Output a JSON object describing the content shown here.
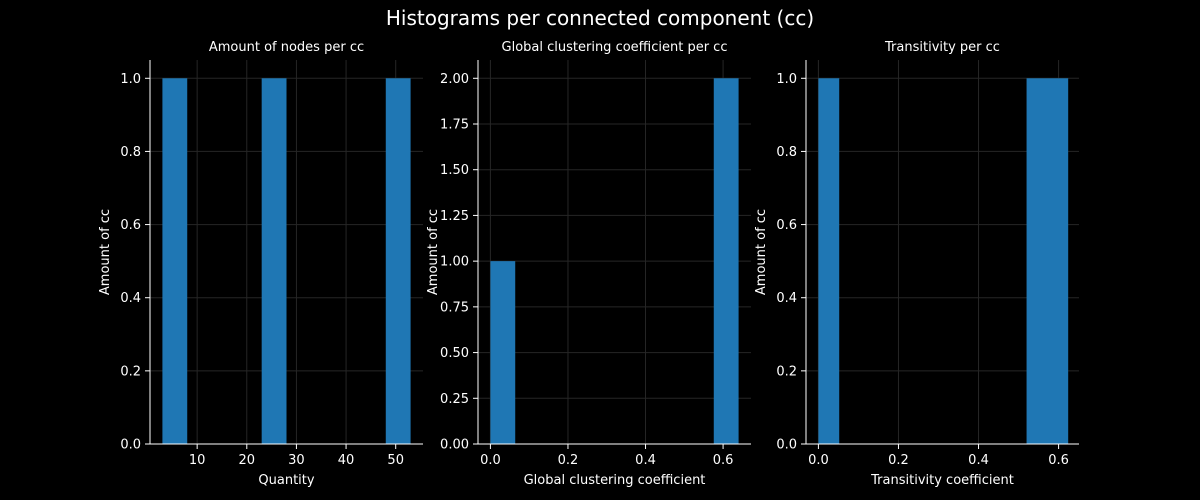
{
  "figure": {
    "title": "Histograms per connected component (cc)"
  },
  "colors": {
    "background": "#000000",
    "bar": "#1f77b4",
    "axis": "#ffffff",
    "grid": "#262626"
  },
  "chart_data": [
    {
      "type": "bar",
      "title": "Amount of nodes per cc",
      "xlabel": "Quantity",
      "ylabel": "Amount of cc",
      "xlim": [
        0.5,
        55.5
      ],
      "ylim": [
        0,
        1.05
      ],
      "xticks": [
        10,
        20,
        30,
        40,
        50
      ],
      "yticks": [
        0.0,
        0.2,
        0.4,
        0.6,
        0.8,
        1.0
      ],
      "ytick_labels": [
        "0.0",
        "0.2",
        "0.4",
        "0.6",
        "0.8",
        "1.0"
      ],
      "grid": true,
      "bins": [
        {
          "x0": 3,
          "x1": 8,
          "value": 1
        },
        {
          "x0": 23,
          "x1": 28,
          "value": 1
        },
        {
          "x0": 48,
          "x1": 53,
          "value": 1
        }
      ]
    },
    {
      "type": "bar",
      "title": "Global clustering coefficient per cc",
      "xlabel": "Global clustering coefficient",
      "ylabel": "Amount of cc",
      "xlim": [
        -0.032,
        0.672
      ],
      "ylim": [
        0,
        2.1
      ],
      "xticks": [
        0.0,
        0.2,
        0.4,
        0.6
      ],
      "xtick_labels": [
        "0.0",
        "0.2",
        "0.4",
        "0.6"
      ],
      "yticks": [
        0.0,
        0.25,
        0.5,
        0.75,
        1.0,
        1.25,
        1.5,
        1.75,
        2.0
      ],
      "ytick_labels": [
        "0.00",
        "0.25",
        "0.50",
        "0.75",
        "1.00",
        "1.25",
        "1.50",
        "1.75",
        "2.00"
      ],
      "grid": true,
      "bins": [
        {
          "x0": 0.0,
          "x1": 0.064,
          "value": 1
        },
        {
          "x0": 0.576,
          "x1": 0.64,
          "value": 2
        }
      ]
    },
    {
      "type": "bar",
      "title": "Transitivity per cc",
      "xlabel": "Transitivity coefficient",
      "ylabel": "Amount of cc",
      "xlim": [
        -0.031,
        0.651
      ],
      "ylim": [
        0,
        1.05
      ],
      "xticks": [
        0.0,
        0.2,
        0.4,
        0.6
      ],
      "xtick_labels": [
        "0.0",
        "0.2",
        "0.4",
        "0.6"
      ],
      "yticks": [
        0.0,
        0.2,
        0.4,
        0.6,
        0.8,
        1.0
      ],
      "ytick_labels": [
        "0.0",
        "0.2",
        "0.4",
        "0.6",
        "0.8",
        "1.0"
      ],
      "grid": true,
      "bins": [
        {
          "x0": 0.0,
          "x1": 0.052,
          "value": 1
        },
        {
          "x0": 0.52,
          "x1": 0.624,
          "value": 1
        }
      ]
    }
  ]
}
